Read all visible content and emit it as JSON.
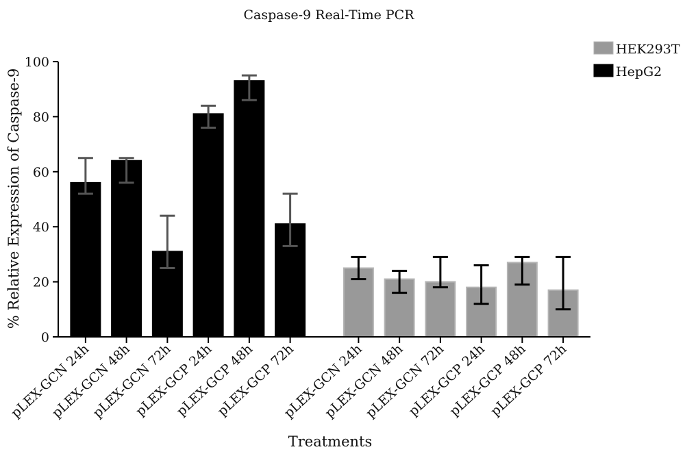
{
  "chart_data": {
    "type": "bar",
    "title": "Caspase-9 Real-Time PCR",
    "x_label": "Treatments",
    "y_label": "% Relative Expression of Caspase-9",
    "categories": [
      "pLEX-GCN 24h",
      "pLEX-GCN 48h",
      "pLEX-GCN 72h",
      "pLEX-GCP 24h",
      "pLEX-GCP 48h",
      "pLEX-GCP 72h",
      "pLEX-GCN 24h",
      "pLEX-GCN 48h",
      "pLEX-GCN 72h",
      "pLEX-GCP 24h",
      "pLEX-GCP 48h",
      "pLEX-GCP 72h"
    ],
    "series": [
      {
        "name": "HEK293T",
        "color": "#999999",
        "error_color": "#000000",
        "values": [
          null,
          null,
          null,
          null,
          null,
          null,
          25,
          21,
          20,
          18,
          27,
          17
        ],
        "error_plus": [
          null,
          null,
          null,
          null,
          null,
          null,
          4,
          3,
          9,
          8,
          2,
          12
        ],
        "error_minus": [
          null,
          null,
          null,
          null,
          null,
          null,
          4,
          5,
          2,
          6,
          8,
          7
        ]
      },
      {
        "name": "HepG2",
        "color": "#000000",
        "error_color": "#555555",
        "values": [
          56,
          64,
          31,
          81,
          93,
          41,
          null,
          null,
          null,
          null,
          null,
          null
        ],
        "error_plus": [
          9,
          1,
          13,
          3,
          2,
          11,
          null,
          null,
          null,
          null,
          null,
          null
        ],
        "error_minus": [
          4,
          8,
          6,
          5,
          7,
          8,
          null,
          null,
          null,
          null,
          null,
          null
        ]
      }
    ],
    "ylim": [
      0,
      100
    ],
    "yticks": [
      0,
      20,
      40,
      60,
      80,
      100
    ],
    "legend": "upper right"
  }
}
